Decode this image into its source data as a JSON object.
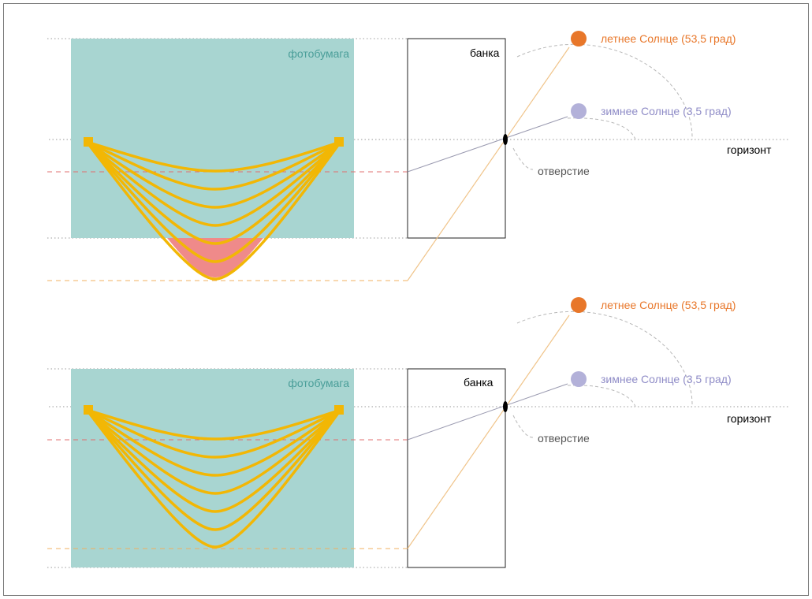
{
  "panels": [
    {
      "photo_paper_label": "фотобумага",
      "can_label": "банка",
      "summer_sun_label": "летнее Солнце (53,5 град)",
      "winter_sun_label": "зимнее Солнце (3,5 град)",
      "horizon_label": "горизонт",
      "hole_label": "отверстие"
    },
    {
      "photo_paper_label": "фотобумага",
      "can_label": "банка",
      "summer_sun_label": "летнее Солнце (53,5 град)",
      "winter_sun_label": "зимнее Солнце (3,5 град)",
      "horizon_label": "горизонт",
      "hole_label": "отверстие"
    }
  ],
  "colors": {
    "paper": "#a8d5d1",
    "sun_trace": "#f2b705",
    "summer_sun": "#e8772a",
    "winter_sun": "#b3b1d9",
    "overflow_region": "#ef8a8a",
    "guide_dotted": "#9a9a9a",
    "dashed_red": "#e07070",
    "dashed_orange": "#f0b060",
    "summer_ray": "#f0c48a",
    "winter_ray": "#9a9ab0",
    "text_dark": "#000000"
  }
}
